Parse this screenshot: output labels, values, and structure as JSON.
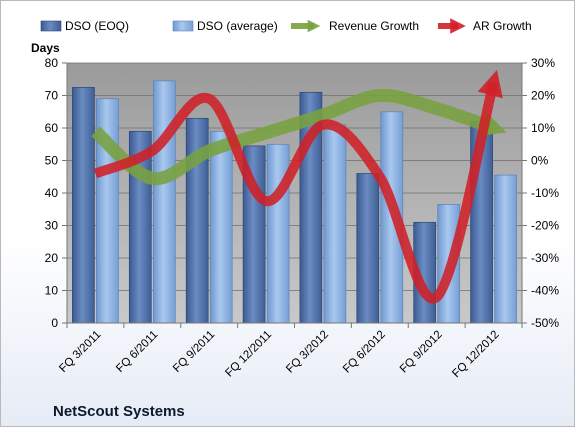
{
  "chart_data": {
    "type": "bar",
    "title": "NetScout Systems",
    "y_axis_label": "Days",
    "categories": [
      "FQ 3/2011",
      "FQ 6/2011",
      "FQ 9/2011",
      "FQ 12/2011",
      "FQ 3/2012",
      "FQ 6/2012",
      "FQ 9/2012",
      "FQ 12/2012"
    ],
    "left_axis": {
      "ylim": [
        0,
        80
      ],
      "ticks": [
        "0",
        "10",
        "20",
        "30",
        "40",
        "50",
        "60",
        "70",
        "80"
      ]
    },
    "right_axis": {
      "ylim": [
        -50,
        30
      ],
      "ticks": [
        "-50%",
        "-40%",
        "-30%",
        "-20%",
        "-10%",
        "0%",
        "10%",
        "20%",
        "30%"
      ]
    },
    "grid": true,
    "legend_placement": "top",
    "series": [
      {
        "name": "DSO (EOQ)",
        "kind": "bar",
        "axis": "left",
        "color": "#4f6fa6",
        "values": [
          72.5,
          59,
          63,
          54.5,
          71,
          46,
          31,
          62
        ]
      },
      {
        "name": "DSO (average)",
        "kind": "bar",
        "axis": "left",
        "color": "#8fb3e0",
        "values": [
          69,
          74.5,
          59,
          55,
          61,
          65,
          36.5,
          45.5
        ]
      },
      {
        "name": "Revenue Growth",
        "kind": "arrow-line",
        "axis": "right",
        "color": "#77a23f",
        "values": [
          9,
          -5.5,
          3,
          8.5,
          14,
          20,
          16,
          10
        ]
      },
      {
        "name": "AR Growth",
        "kind": "arrow-line",
        "axis": "right",
        "color": "#cf2026",
        "values": [
          -4,
          3,
          19,
          -12.5,
          11,
          -5,
          -42,
          24
        ]
      }
    ]
  }
}
